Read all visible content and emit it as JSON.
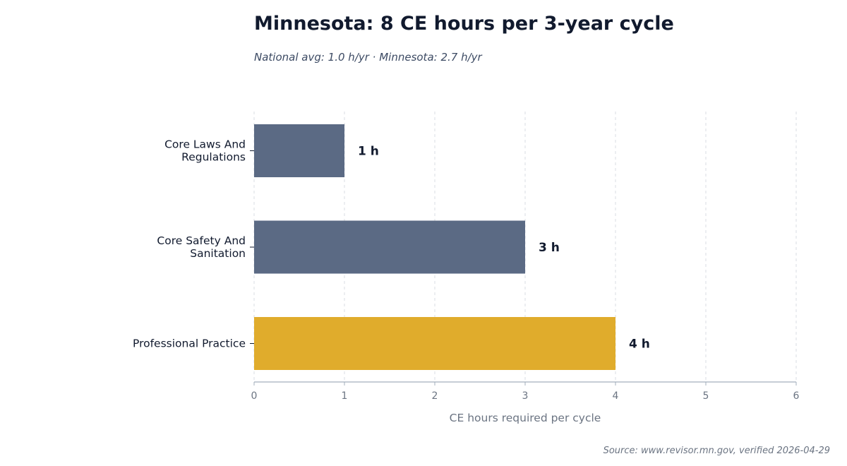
{
  "chart_data": {
    "type": "bar",
    "orientation": "horizontal",
    "title": "Minnesota: 8 CE hours per 3-year cycle",
    "subtitle": "National avg: 1.0 h/yr · Minnesota: 2.7 h/yr",
    "categories": [
      "Core Laws And Regulations",
      "Core Safety And Sanitation",
      "Professional Practice"
    ],
    "category_label_lines": [
      [
        "Core Laws And",
        "Regulations"
      ],
      [
        "Core Safety And",
        "Sanitation"
      ],
      [
        "Professional Practice"
      ]
    ],
    "values": [
      1,
      3,
      4
    ],
    "value_labels": [
      "1 h",
      "3 h",
      "4 h"
    ],
    "bar_colors": [
      "#5b6a84",
      "#5b6a84",
      "#e0ac2c"
    ],
    "xlabel": "CE hours required per cycle",
    "ylabel": "",
    "xlim": [
      0,
      6
    ],
    "xticks": [
      "0",
      "1",
      "2",
      "3",
      "4",
      "5",
      "6"
    ],
    "grid": "x-dashed",
    "legend": "none",
    "source": "Source: www.revisor.mn.gov, verified 2026-04-29"
  },
  "colors": {
    "title": "#111a2e",
    "subtitle": "#3c4a63",
    "axis": "#a3afbd",
    "tick_text": "#6b7482",
    "grid": "#d9dde3",
    "value_text": "#111a2e",
    "category_text": "#111a2e"
  }
}
